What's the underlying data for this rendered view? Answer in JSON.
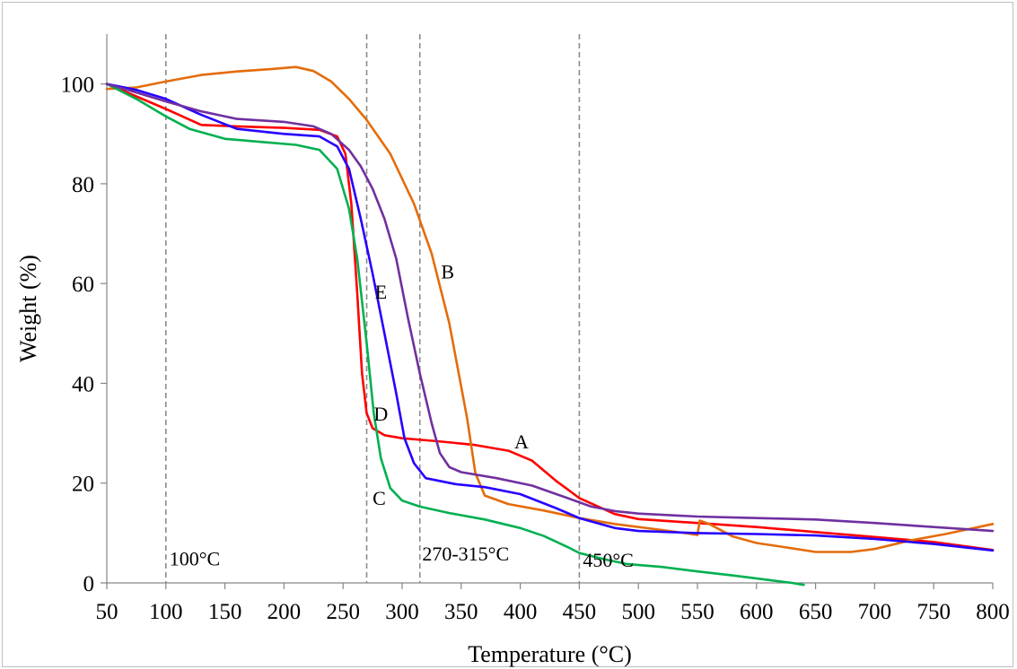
{
  "chart_data": {
    "type": "line",
    "title": "",
    "xlabel": "Temperature (°C)",
    "ylabel": "Weight (%)",
    "xlim": [
      50,
      800
    ],
    "ylim": [
      0,
      110
    ],
    "xticks": [
      50,
      100,
      150,
      200,
      250,
      300,
      350,
      400,
      450,
      500,
      550,
      600,
      650,
      700,
      750,
      800
    ],
    "yticks": [
      0,
      20,
      40,
      60,
      80,
      100
    ],
    "grid": false,
    "legend": "none",
    "reference_lines_x": [
      100,
      270,
      315,
      450
    ],
    "annotations": [
      {
        "text": "100°C",
        "x": 103,
        "y": 3.5
      },
      {
        "text": "270-315°C",
        "x": 317,
        "y": 4.5
      },
      {
        "text": "450°C",
        "x": 453,
        "y": 3.2
      }
    ],
    "series": [
      {
        "label": "A",
        "color": "#ff0000",
        "label_pos": [
          395,
          27
        ],
        "points": [
          [
            50,
            100
          ],
          [
            75,
            97.5
          ],
          [
            100,
            95
          ],
          [
            130,
            91.8
          ],
          [
            160,
            91.5
          ],
          [
            200,
            91.2
          ],
          [
            230,
            90.8
          ],
          [
            245,
            89.5
          ],
          [
            252,
            86
          ],
          [
            257,
            76
          ],
          [
            262,
            58
          ],
          [
            266,
            42
          ],
          [
            270,
            34
          ],
          [
            275,
            31
          ],
          [
            285,
            29.6
          ],
          [
            300,
            29
          ],
          [
            330,
            28.4
          ],
          [
            360,
            27.7
          ],
          [
            390,
            26.5
          ],
          [
            410,
            24.5
          ],
          [
            430,
            20.5
          ],
          [
            450,
            17
          ],
          [
            480,
            13.8
          ],
          [
            500,
            12.8
          ],
          [
            550,
            12
          ],
          [
            600,
            11.2
          ],
          [
            620,
            10.8
          ],
          [
            650,
            10.2
          ],
          [
            700,
            9.2
          ],
          [
            750,
            8.2
          ],
          [
            800,
            6.6
          ]
        ]
      },
      {
        "label": "B",
        "color": "#e46c0a",
        "label_pos": [
          333,
          61
        ],
        "points": [
          [
            50,
            99
          ],
          [
            75,
            99.3
          ],
          [
            100,
            100.5
          ],
          [
            130,
            101.8
          ],
          [
            160,
            102.5
          ],
          [
            190,
            103
          ],
          [
            210,
            103.4
          ],
          [
            225,
            102.6
          ],
          [
            240,
            100.5
          ],
          [
            255,
            97
          ],
          [
            270,
            92.8
          ],
          [
            290,
            86
          ],
          [
            310,
            76
          ],
          [
            325,
            66
          ],
          [
            340,
            52
          ],
          [
            355,
            33
          ],
          [
            362,
            22
          ],
          [
            370,
            17.5
          ],
          [
            390,
            15.8
          ],
          [
            420,
            14.5
          ],
          [
            450,
            13
          ],
          [
            480,
            11.8
          ],
          [
            520,
            10.6
          ],
          [
            545,
            9.8
          ],
          [
            550,
            9.6
          ],
          [
            552,
            12.5
          ],
          [
            560,
            11.8
          ],
          [
            580,
            9.3
          ],
          [
            600,
            8
          ],
          [
            620,
            7.3
          ],
          [
            650,
            6.2
          ],
          [
            680,
            6.2
          ],
          [
            700,
            6.8
          ],
          [
            730,
            8.5
          ],
          [
            760,
            9.8
          ],
          [
            780,
            10.8
          ],
          [
            800,
            11.8
          ]
        ]
      },
      {
        "label": "C",
        "color": "#00b050",
        "label_pos": [
          275,
          15.6
        ],
        "points": [
          [
            50,
            100
          ],
          [
            75,
            97
          ],
          [
            100,
            93.5
          ],
          [
            120,
            91
          ],
          [
            150,
            89
          ],
          [
            180,
            88.4
          ],
          [
            210,
            87.8
          ],
          [
            230,
            86.8
          ],
          [
            245,
            83
          ],
          [
            255,
            75
          ],
          [
            262,
            65
          ],
          [
            270,
            48
          ],
          [
            276,
            34
          ],
          [
            282,
            25
          ],
          [
            290,
            19
          ],
          [
            300,
            16.5
          ],
          [
            315,
            15.3
          ],
          [
            340,
            14
          ],
          [
            370,
            12.7
          ],
          [
            400,
            11
          ],
          [
            420,
            9.4
          ],
          [
            440,
            7.2
          ],
          [
            450,
            6
          ],
          [
            470,
            4.8
          ],
          [
            490,
            3.8
          ],
          [
            520,
            3.2
          ],
          [
            550,
            2.3
          ],
          [
            580,
            1.5
          ],
          [
            610,
            0.6
          ],
          [
            630,
            0
          ],
          [
            640,
            -0.4
          ]
        ]
      },
      {
        "label": "D",
        "color": "#2600ff",
        "label_pos": [
          276,
          32.5
        ],
        "points": [
          [
            50,
            100
          ],
          [
            75,
            98.8
          ],
          [
            100,
            97
          ],
          [
            130,
            93.8
          ],
          [
            160,
            91
          ],
          [
            200,
            90
          ],
          [
            230,
            89.5
          ],
          [
            245,
            87.5
          ],
          [
            255,
            83
          ],
          [
            265,
            73
          ],
          [
            275,
            62
          ],
          [
            285,
            50
          ],
          [
            295,
            38
          ],
          [
            302,
            29
          ],
          [
            310,
            24
          ],
          [
            320,
            21
          ],
          [
            345,
            19.8
          ],
          [
            370,
            19.2
          ],
          [
            400,
            17.8
          ],
          [
            430,
            15
          ],
          [
            450,
            13
          ],
          [
            480,
            11
          ],
          [
            500,
            10.4
          ],
          [
            550,
            10
          ],
          [
            600,
            9.8
          ],
          [
            650,
            9.5
          ],
          [
            700,
            8.8
          ],
          [
            750,
            7.8
          ],
          [
            800,
            6.5
          ]
        ]
      },
      {
        "label": "E",
        "color": "#7030a0",
        "label_pos": [
          277,
          57
        ],
        "points": [
          [
            50,
            100
          ],
          [
            75,
            98.3
          ],
          [
            100,
            96.5
          ],
          [
            130,
            94.5
          ],
          [
            160,
            93
          ],
          [
            200,
            92.4
          ],
          [
            225,
            91.5
          ],
          [
            240,
            90
          ],
          [
            255,
            86.8
          ],
          [
            265,
            83.5
          ],
          [
            275,
            79
          ],
          [
            285,
            73
          ],
          [
            295,
            65
          ],
          [
            305,
            53
          ],
          [
            315,
            42
          ],
          [
            325,
            32
          ],
          [
            332,
            26
          ],
          [
            340,
            23.2
          ],
          [
            350,
            22.2
          ],
          [
            380,
            21
          ],
          [
            410,
            19.5
          ],
          [
            440,
            17
          ],
          [
            460,
            15.3
          ],
          [
            480,
            14.4
          ],
          [
            500,
            13.9
          ],
          [
            550,
            13.3
          ],
          [
            600,
            13
          ],
          [
            650,
            12.7
          ],
          [
            700,
            12
          ],
          [
            750,
            11.2
          ],
          [
            800,
            10.4
          ]
        ]
      }
    ]
  }
}
